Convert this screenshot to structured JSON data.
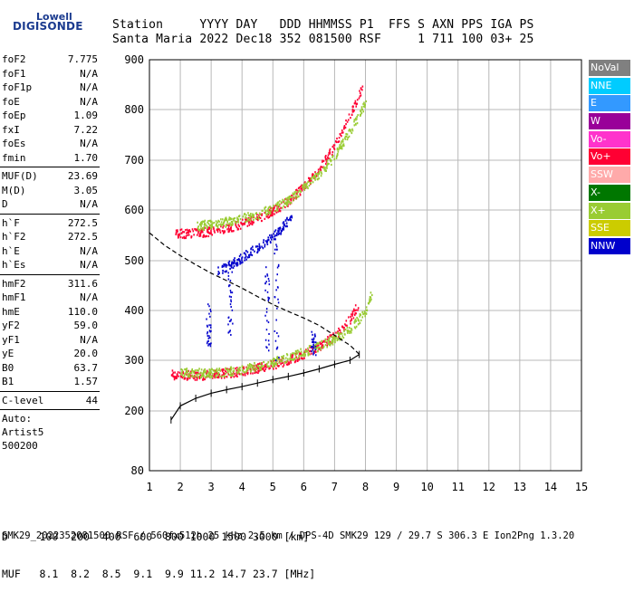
{
  "logo": {
    "line1": "Lowell",
    "line2": "DIGISONDE"
  },
  "header": {
    "line1": "Station     YYYY DAY   DDD HHMMSS P1  FFS S AXN PPS IGA PS",
    "line2": "Santa Maria 2022 Dec18 352 081500 RSF     1 711 100 03+ 25"
  },
  "params": [
    {
      "k": "foF2",
      "v": "7.775"
    },
    {
      "k": "foF1",
      "v": "N/A"
    },
    {
      "k": "foF1p",
      "v": "N/A"
    },
    {
      "k": "foE",
      "v": "N/A"
    },
    {
      "k": "foEp",
      "v": "1.09"
    },
    {
      "k": "fxI",
      "v": "7.22"
    },
    {
      "k": "foEs",
      "v": "N/A"
    },
    {
      "k": "fmin",
      "v": "1.70"
    },
    {
      "k": "MUF(D)",
      "v": "23.69"
    },
    {
      "k": "M(D)",
      "v": "3.05"
    },
    {
      "k": "D",
      "v": "N/A"
    },
    {
      "k": "h`F",
      "v": "272.5"
    },
    {
      "k": "h`F2",
      "v": "272.5"
    },
    {
      "k": "h`E",
      "v": "N/A"
    },
    {
      "k": "h`Es",
      "v": "N/A"
    },
    {
      "k": "hmF2",
      "v": "311.6"
    },
    {
      "k": "hmF1",
      "v": "N/A"
    },
    {
      "k": "hmE",
      "v": "110.0"
    },
    {
      "k": "yF2",
      "v": "59.0"
    },
    {
      "k": "yF1",
      "v": "N/A"
    },
    {
      "k": "yE",
      "v": "20.0"
    },
    {
      "k": "B0",
      "v": "63.7"
    },
    {
      "k": "B1",
      "v": "1.57"
    },
    {
      "k": "C-level",
      "v": "44"
    }
  ],
  "auto": {
    "line1": "Auto:",
    "line2": "Artist5",
    "line3": "500200"
  },
  "legend": [
    {
      "label": "NoVal",
      "color": "#808080"
    },
    {
      "label": "NNE",
      "color": "#00ccff"
    },
    {
      "label": "E",
      "color": "#3399ff"
    },
    {
      "label": "W",
      "color": "#990099"
    },
    {
      "label": "Vo-",
      "color": "#ff33cc"
    },
    {
      "label": "Vo+",
      "color": "#ff0033"
    },
    {
      "label": "SSW",
      "color": "#ffaaaa"
    },
    {
      "label": "X-",
      "color": "#007700"
    },
    {
      "label": "X+",
      "color": "#99cc33"
    },
    {
      "label": "SSE",
      "color": "#cccc00"
    },
    {
      "label": "NNW",
      "color": "#0000cc"
    }
  ],
  "bottom": {
    "line1": "D     100  200  400  600  800 1000 1500 3000 [km]",
    "line2": "MUF   8.1  8.2  8.5  9.1  9.9 11.2 14.7 23.7 [MHz]"
  },
  "footer": "SMK29_2022352081500.RSF / 560fx512h 25 kHz 2.5 km / DPS-4D SMK29 129 / 29.7 S 306.3 E Ion2Png 1.3.20",
  "chart_data": {
    "type": "scatter",
    "xlim": [
      1,
      15
    ],
    "ylim": [
      80,
      900
    ],
    "x_ticks": [
      1,
      2,
      3,
      4,
      5,
      6,
      7,
      8,
      9,
      10,
      11,
      12,
      13,
      14,
      15
    ],
    "y_ticks": [
      80,
      200,
      300,
      400,
      500,
      600,
      700,
      800,
      900
    ],
    "grid": true,
    "traces": [
      {
        "name": "O-trace F2",
        "legend": "Vo+",
        "x": [
          1.7,
          2.0,
          2.5,
          3.0,
          3.5,
          4.0,
          4.5,
          5.0,
          5.5,
          6.0,
          6.5,
          7.0,
          7.5,
          7.8
        ],
        "y": [
          273,
          272,
          272,
          273,
          276,
          280,
          286,
          293,
          302,
          315,
          330,
          350,
          385,
          420
        ]
      },
      {
        "name": "X-trace F2",
        "legend": "X+",
        "x": [
          2.0,
          3.0,
          4.0,
          5.0,
          6.0,
          6.5,
          7.0,
          7.5,
          8.0,
          8.2
        ],
        "y": [
          278,
          276,
          283,
          298,
          318,
          330,
          345,
          365,
          400,
          440
        ]
      },
      {
        "name": "O-trace F2 multiple",
        "legend": "Vo+",
        "x": [
          1.8,
          2.5,
          3.0,
          3.5,
          4.0,
          4.5,
          5.0,
          5.5,
          6.0,
          6.5,
          7.0,
          7.5,
          7.9
        ],
        "y": [
          555,
          556,
          560,
          565,
          575,
          585,
          600,
          620,
          648,
          685,
          730,
          790,
          850
        ]
      },
      {
        "name": "X-trace F2 multiple",
        "legend": "X+",
        "x": [
          2.5,
          3.5,
          4.5,
          5.5,
          6.5,
          7.0,
          7.5,
          8.0
        ],
        "y": [
          570,
          578,
          592,
          620,
          675,
          710,
          760,
          815
        ]
      },
      {
        "name": "oblique echoes",
        "legend": "NNW",
        "x": [
          3.2,
          3.8,
          4.3,
          4.8,
          5.2,
          5.6
        ],
        "y": [
          480,
          500,
          520,
          540,
          560,
          590
        ]
      }
    ],
    "edp_profile": {
      "x": [
        1.7,
        2.0,
        2.5,
        3.0,
        3.5,
        4.0,
        4.5,
        5.0,
        5.5,
        6.0,
        6.5,
        7.0,
        7.5,
        7.8
      ],
      "y": [
        182,
        210,
        225,
        235,
        242,
        248,
        255,
        262,
        268,
        275,
        283,
        292,
        300,
        311.6
      ]
    },
    "virtual_height_model": {
      "x": [
        1.0,
        1.5,
        2.0,
        2.5,
        3.0,
        3.5,
        4.0,
        4.5,
        5.0,
        5.5,
        6.0,
        6.5,
        7.0,
        7.5,
        7.8
      ],
      "y": [
        555,
        530,
        510,
        492,
        475,
        460,
        445,
        428,
        412,
        398,
        385,
        370,
        350,
        330,
        312
      ]
    }
  }
}
